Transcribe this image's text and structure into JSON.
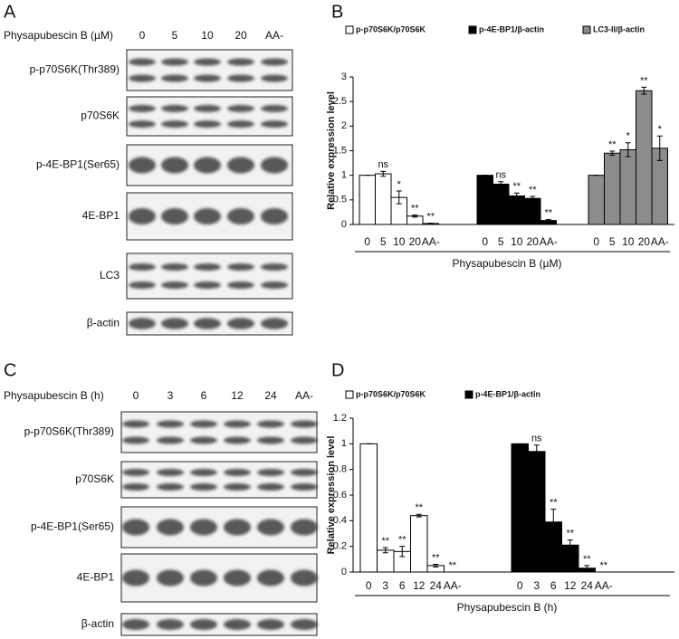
{
  "panel_a": {
    "letter": "A",
    "treatment_label": "Physapubescin B (µM)",
    "lanes": [
      "0",
      "5",
      "10",
      "20",
      "AA-"
    ],
    "blots": [
      "p-p70S6K(Thr389)",
      "p70S6K",
      "p-4E-BP1(Ser65)",
      "4E-BP1",
      "LC3",
      "β-actin"
    ]
  },
  "panel_c": {
    "letter": "C",
    "treatment_label": "Physapubescin B (h)",
    "lanes": [
      "0",
      "3",
      "6",
      "12",
      "24",
      "AA-"
    ],
    "blots": [
      "p-p70S6K(Thr389)",
      "p70S6K",
      "p-4E-BP1(Ser65)",
      "4E-BP1",
      "β-actin"
    ]
  },
  "chart_data": [
    {
      "type": "bar",
      "panel": "B",
      "ylabel": "Relative expression level",
      "xlabel": "Physapubescin B (µM)",
      "categories": [
        "0",
        "5",
        "10",
        "20",
        "AA-"
      ],
      "ylim": [
        0,
        3
      ],
      "yticks": [
        0,
        0.5,
        1,
        1.5,
        2,
        2.5,
        3
      ],
      "series": [
        {
          "name": "p-p70S6K/p70S6K",
          "color": "#ffffff",
          "values": [
            1,
            1.03,
            0.55,
            0.17,
            0.02
          ],
          "errors": [
            0,
            0.05,
            0.13,
            0.02,
            0.005
          ],
          "annotations": [
            null,
            "ns",
            "*",
            "**",
            "**"
          ]
        },
        {
          "name": "p-4E-BP1/β-actin",
          "color": "#000000",
          "values": [
            1,
            0.82,
            0.58,
            0.53,
            0.08
          ],
          "errors": [
            0,
            0.05,
            0.06,
            0.04,
            0.02
          ],
          "annotations": [
            null,
            "ns",
            "**",
            "**",
            "**"
          ]
        },
        {
          "name": "LC3-II/β-actin",
          "color": "#8c8c8c",
          "values": [
            1,
            1.45,
            1.52,
            2.72,
            1.55
          ],
          "errors": [
            0,
            0.04,
            0.14,
            0.07,
            0.25
          ],
          "annotations": [
            null,
            "**",
            "*",
            "**",
            "*"
          ]
        }
      ]
    },
    {
      "type": "bar",
      "panel": "D",
      "ylabel": "Relative expression level",
      "xlabel": "Physapubescin B (h)",
      "categories": [
        "0",
        "3",
        "6",
        "12",
        "24",
        "AA-"
      ],
      "ylim": [
        0,
        1.2
      ],
      "yticks": [
        0,
        0.2,
        0.4,
        0.6,
        0.8,
        1,
        1.2
      ],
      "series": [
        {
          "name": "p-p70S6K/p70S6K",
          "color": "#ffffff",
          "values": [
            1,
            0.17,
            0.16,
            0.44,
            0.05,
            0
          ],
          "errors": [
            0,
            0.02,
            0.04,
            0.01,
            0.01,
            0
          ],
          "annotations": [
            null,
            "**",
            "**",
            "**",
            "**",
            "**"
          ]
        },
        {
          "name": "p-4E-BP1/β-actin",
          "color": "#000000",
          "values": [
            1,
            0.94,
            0.39,
            0.21,
            0.03,
            0
          ],
          "errors": [
            0,
            0.05,
            0.1,
            0.04,
            0.02,
            0
          ],
          "annotations": [
            null,
            "ns",
            "**",
            "**",
            "**",
            "**"
          ]
        }
      ]
    }
  ]
}
